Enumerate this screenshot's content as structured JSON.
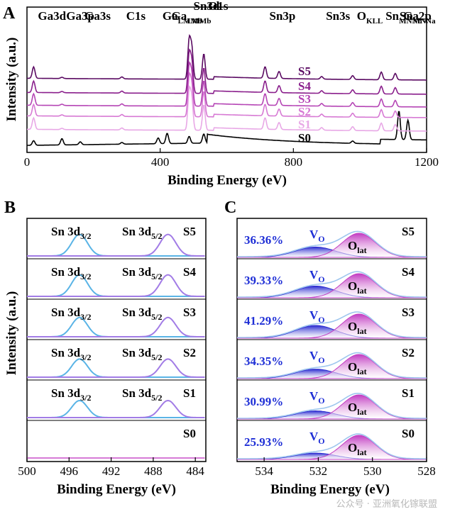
{
  "chart_data": [
    {
      "panel": "A",
      "type": "line",
      "xlabel": "Binding Energy (eV)",
      "ylabel": "Intensity (a.u.)",
      "xlim": [
        0,
        1200
      ],
      "xticks": [
        0,
        400,
        800,
        1200
      ],
      "samples": [
        "S0",
        "S1",
        "S2",
        "S3",
        "S4",
        "S5"
      ],
      "colors": [
        "#000000",
        "#e8a8e6",
        "#d77ad4",
        "#b545b5",
        "#8a1f8c",
        "#5a0a62"
      ],
      "peak_labels": [
        {
          "text": "Ga3d",
          "x": 20
        },
        {
          "text": "Ga3p",
          "x": 105
        },
        {
          "text": "Ga3s",
          "x": 160
        },
        {
          "text": "C1s",
          "x": 285
        },
        {
          "text": "Ga",
          "sub": "LMMb",
          "x": 394
        },
        {
          "text": "Ga",
          "sub": "LMMb",
          "x": 421
        },
        {
          "text": "Sn3d",
          "x": 487
        },
        {
          "text": "O1s",
          "x": 531
        },
        {
          "text": "Sn3p",
          "x": 715
        },
        {
          "text": "Sn3s",
          "x": 885
        },
        {
          "text": "O",
          "sub": "KLL",
          "x": 978
        },
        {
          "text": "Sn",
          "sub": "MNNb",
          "x": 1064
        },
        {
          "text": "Sn",
          "sub": "MNNa",
          "x": 1106
        },
        {
          "text": "Ga2p",
          "x": 1117
        }
      ],
      "s0_peaks": [
        {
          "x": 20,
          "h": 0.4
        },
        {
          "x": 105,
          "h": 0.55
        },
        {
          "x": 160,
          "h": 0.25
        },
        {
          "x": 285,
          "h": 0.15
        },
        {
          "x": 394,
          "h": 0.5
        },
        {
          "x": 421,
          "h": 0.9
        },
        {
          "x": 487,
          "h": 0.6
        },
        {
          "x": 531,
          "h": 0.8
        },
        {
          "x": 978,
          "h": 0.2
        },
        {
          "x": 1117,
          "h": 2.5
        },
        {
          "x": 1144,
          "h": 1.7
        }
      ],
      "sn_peaks": [
        {
          "x": 20,
          "h": 0.9
        },
        {
          "x": 105,
          "h": 0.1
        },
        {
          "x": 285,
          "h": 0.15
        },
        {
          "x": 487,
          "h": 3.0
        },
        {
          "x": 495,
          "h": 2.4
        },
        {
          "x": 531,
          "h": 2.0
        },
        {
          "x": 715,
          "h": 0.9
        },
        {
          "x": 757,
          "h": 0.55
        },
        {
          "x": 885,
          "h": 0.2
        },
        {
          "x": 978,
          "h": 0.3
        },
        {
          "x": 1064,
          "h": 0.6
        },
        {
          "x": 1106,
          "h": 0.5
        }
      ]
    },
    {
      "panel": "B",
      "type": "line",
      "xlabel": "Binding Energy (eV)",
      "ylabel": "Intensity (a.u.)",
      "xlim": [
        500,
        483
      ],
      "xticks": [
        500,
        496,
        492,
        488,
        484
      ],
      "samples": [
        "S5",
        "S4",
        "S3",
        "S2",
        "S1",
        "S0"
      ],
      "peaks": [
        {
          "label": "Sn 3d",
          "sub": "3/2",
          "center": 495.0,
          "color": "#5ab4e6"
        },
        {
          "label": "Sn 3d",
          "sub": "5/2",
          "center": 486.6,
          "color": "#a27ce6"
        }
      ],
      "peak_height": [
        0.95,
        0.95,
        0.85,
        0.8,
        0.75,
        0.0
      ]
    },
    {
      "panel": "C",
      "type": "area",
      "xlabel": "Binding Energy (eV)",
      "xlim": [
        535,
        528
      ],
      "xticks": [
        534,
        532,
        530,
        528
      ],
      "samples": [
        "S5",
        "S4",
        "S3",
        "S2",
        "S1",
        "S0"
      ],
      "vo_percent": [
        "36.36%",
        "39.33%",
        "41.29%",
        "34.35%",
        "30.99%",
        "25.93%"
      ],
      "vo_label": "V",
      "vo_sub": "O",
      "olat_label": "O",
      "olat_sub": "lat",
      "vo_center": 532.1,
      "olat_center": 530.5,
      "vo_color": "#2a2ad0",
      "olat_color": "#c23cc2"
    }
  ],
  "watermark": "公众号 · 亚洲氧化镓联盟"
}
